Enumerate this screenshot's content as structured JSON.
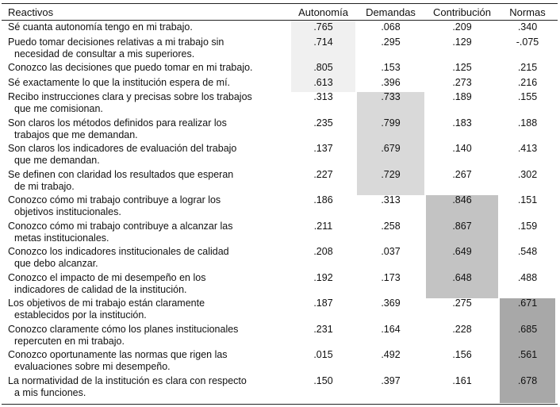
{
  "table": {
    "header": [
      "Reactivos",
      "Autonomía",
      "Demandas",
      "Contribución",
      "Normas"
    ],
    "rows": [
      {
        "item": [
          "Sé cuanta autonomía tengo en mi trabajo."
        ],
        "values": [
          ".765",
          ".068",
          ".209",
          ".340"
        ]
      },
      {
        "item": [
          "Puedo tomar decisiones relativas a mi trabajo sin",
          "necesidad de consultar a mis superiores."
        ],
        "values": [
          ".714",
          ".295",
          ".129",
          "-.075"
        ]
      },
      {
        "item": [
          "Conozco las decisiones que puedo tomar en mi trabajo."
        ],
        "values": [
          ".805",
          ".153",
          ".125",
          ".215"
        ]
      },
      {
        "item": [
          "Sé exactamente lo que la institución espera de mí."
        ],
        "values": [
          ".613",
          ".396",
          ".273",
          ".216"
        ]
      },
      {
        "item": [
          "Recibo instrucciones clara y precisas sobre los trabajos",
          "que me comisionan."
        ],
        "values": [
          ".313",
          ".733",
          ".189",
          ".155"
        ]
      },
      {
        "item": [
          "Son claros los métodos definidos para realizar los",
          "trabajos que me demandan."
        ],
        "values": [
          ".235",
          ".799",
          ".183",
          ".188"
        ]
      },
      {
        "item": [
          "Son claros los indicadores de evaluación del trabajo",
          "que me demandan."
        ],
        "values": [
          ".137",
          ".679",
          ".140",
          ".413"
        ]
      },
      {
        "item": [
          "Se definen con claridad los resultados que esperan",
          "de mi trabajo."
        ],
        "values": [
          ".227",
          ".729",
          ".267",
          ".302"
        ]
      },
      {
        "item": [
          "Conozco cómo mi trabajo contribuye a lograr los",
          "objetivos institucionales."
        ],
        "values": [
          ".186",
          ".313",
          ".846",
          ".151"
        ]
      },
      {
        "item": [
          "Conozco cómo mi trabajo contribuye a alcanzar las",
          "metas institucionales."
        ],
        "values": [
          ".211",
          ".258",
          ".867",
          ".159"
        ]
      },
      {
        "item": [
          "Conozco los indicadores institucionales de calidad",
          "que debo alcanzar."
        ],
        "values": [
          ".208",
          ".037",
          ".649",
          ".548"
        ]
      },
      {
        "item": [
          "Conozco el impacto de mi desempeño en los",
          "indicadores de calidad de la institución."
        ],
        "values": [
          ".192",
          ".173",
          ".648",
          ".488"
        ]
      },
      {
        "item": [
          "Los objetivos de mi trabajo están claramente",
          "establecidos por la institución."
        ],
        "values": [
          ".187",
          ".369",
          ".275",
          ".671"
        ]
      },
      {
        "item": [
          "Conozco claramente cómo los planes institucionales",
          "repercuten en mi trabajo."
        ],
        "values": [
          ".231",
          ".164",
          ".228",
          ".685"
        ]
      },
      {
        "item": [
          "Conozco oportunamente las normas que rigen las",
          "evaluaciones sobre mi desempeño."
        ],
        "values": [
          ".015",
          ".492",
          ".156",
          ".561"
        ]
      },
      {
        "item": [
          "La normatividad de la institución es clara con respecto",
          "a mis funciones."
        ],
        "values": [
          ".150",
          ".397",
          ".161",
          ".678"
        ]
      }
    ]
  }
}
